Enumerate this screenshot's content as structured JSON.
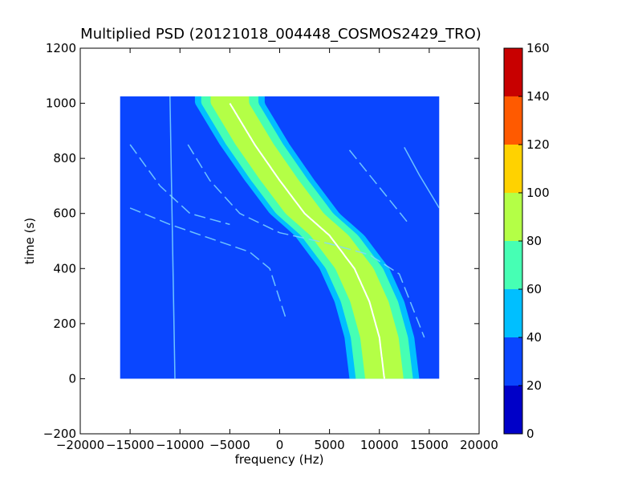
{
  "chart_data": {
    "type": "heatmap",
    "title": "Multiplied PSD (20121018_004448_COSMOS2429_TRO)",
    "xlabel": "frequency (Hz)",
    "ylabel": "time (s)",
    "xlim": [
      -20000,
      20000
    ],
    "ylim": [
      -200,
      1200
    ],
    "xticks": [
      -20000,
      -15000,
      -10000,
      -5000,
      0,
      5000,
      10000,
      15000,
      20000
    ],
    "xtick_labels": [
      "−20000",
      "−15000",
      "−10000",
      "−5000",
      "0",
      "5000",
      "10000",
      "15000",
      "20000"
    ],
    "yticks": [
      -200,
      0,
      200,
      400,
      600,
      800,
      1000,
      1200
    ],
    "ytick_labels": [
      "−200",
      "0",
      "200",
      "400",
      "600",
      "800",
      "1000",
      "1200"
    ],
    "data_extent": {
      "x": [
        -16000,
        16000
      ],
      "y": [
        0,
        1025
      ]
    },
    "background_level": "20-40",
    "colorbar": {
      "min": 0,
      "max": 160,
      "ticks": [
        0,
        20,
        40,
        60,
        80,
        100,
        120,
        140,
        160
      ],
      "levels": [
        {
          "from": 0,
          "to": 20,
          "color": "#0000c8"
        },
        {
          "from": 20,
          "to": 40,
          "color": "#0a46ff"
        },
        {
          "from": 40,
          "to": 60,
          "color": "#00bfff"
        },
        {
          "from": 60,
          "to": 80,
          "color": "#46ffb4"
        },
        {
          "from": 80,
          "to": 100,
          "color": "#b4ff46"
        },
        {
          "from": 100,
          "to": 120,
          "color": "#ffd200"
        },
        {
          "from": 120,
          "to": 140,
          "color": "#ff5a00"
        },
        {
          "from": 140,
          "to": 160,
          "color": "#c80000"
        }
      ]
    },
    "main_trace": {
      "description_points": [
        [
          -5000,
          1000
        ],
        [
          -2500,
          850
        ],
        [
          0,
          720
        ],
        [
          2500,
          600
        ],
        [
          5000,
          520
        ],
        [
          7500,
          400
        ],
        [
          9000,
          280
        ],
        [
          10000,
          150
        ],
        [
          10500,
          0
        ]
      ],
      "band_width_hz": 7000
    },
    "secondary_traces": [
      {
        "points": [
          [
            -9200,
            850
          ],
          [
            -7000,
            720
          ],
          [
            -4000,
            600
          ],
          [
            0,
            530
          ],
          [
            5000,
            490
          ],
          [
            9000,
            450
          ],
          [
            12000,
            380
          ],
          [
            14500,
            150
          ]
        ]
      },
      {
        "points": [
          [
            -15000,
            620
          ],
          [
            -11000,
            560
          ],
          [
            -7000,
            510
          ],
          [
            -3000,
            460
          ],
          [
            -1000,
            400
          ],
          [
            700,
            210
          ]
        ]
      },
      {
        "points": [
          [
            -15000,
            850
          ],
          [
            -12000,
            700
          ],
          [
            -9000,
            600
          ],
          [
            -5000,
            560
          ]
        ]
      },
      {
        "points": [
          [
            7000,
            830
          ],
          [
            9000,
            740
          ],
          [
            11000,
            650
          ],
          [
            13000,
            560
          ]
        ]
      },
      {
        "points": [
          [
            12500,
            840
          ],
          [
            14000,
            740
          ],
          [
            16000,
            620
          ]
        ]
      },
      {
        "points": [
          [
            -11000,
            1025
          ],
          [
            -10500,
            0
          ]
        ]
      }
    ]
  }
}
